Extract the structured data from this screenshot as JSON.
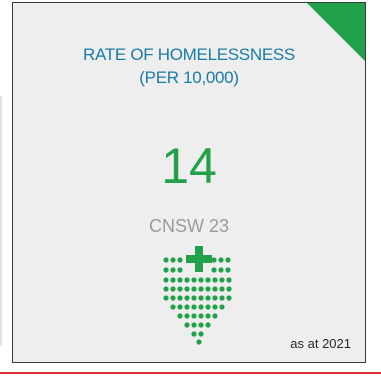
{
  "card": {
    "title": "RATE OF HOMELESSNESS (PER 10,000)",
    "value": "14",
    "subtitle": "CNSW 23",
    "note": "as at 2021"
  },
  "icon": {
    "name": "shield-cross-dots-icon"
  },
  "colors": {
    "title": "#1a7ba6",
    "value": "#21a24a",
    "subtitle": "#9b9b9b",
    "corner": "#21a24a",
    "bottom_rule": "#d9303a"
  }
}
